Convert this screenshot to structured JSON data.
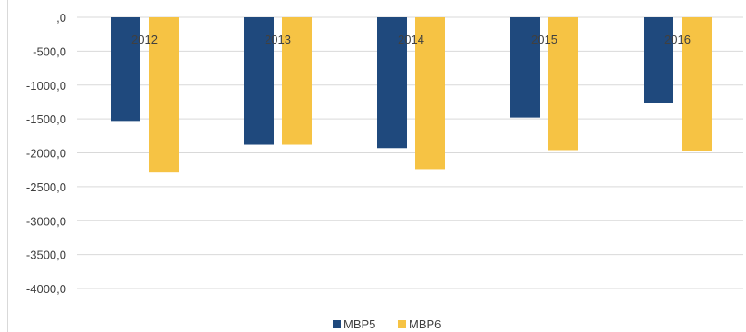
{
  "chart_data": {
    "type": "bar",
    "categories": [
      "2012",
      "2013",
      "2014",
      "2015",
      "2016"
    ],
    "series": [
      {
        "name": "MBP5",
        "values": [
          -1530,
          -1880,
          -1930,
          -1480,
          -1270
        ],
        "color": "#1f497d"
      },
      {
        "name": "MBP6",
        "values": [
          -2290,
          -1880,
          -2240,
          -1960,
          -1980
        ],
        "color": "#f6c344"
      }
    ],
    "y_ticks": [
      0,
      -500,
      -1000,
      -1500,
      -2000,
      -2500,
      -3000,
      -3500,
      -4000
    ],
    "y_tick_labels": [
      ",0",
      "-500,0",
      "-1000,0",
      "-1500,0",
      "-2000,0",
      "-2500,0",
      "-3000,0",
      "-3500,0",
      "-4000,0"
    ],
    "ylim": [
      -4000,
      0
    ],
    "grid": true,
    "legend_position": "bottom",
    "category_label_position": "top"
  }
}
